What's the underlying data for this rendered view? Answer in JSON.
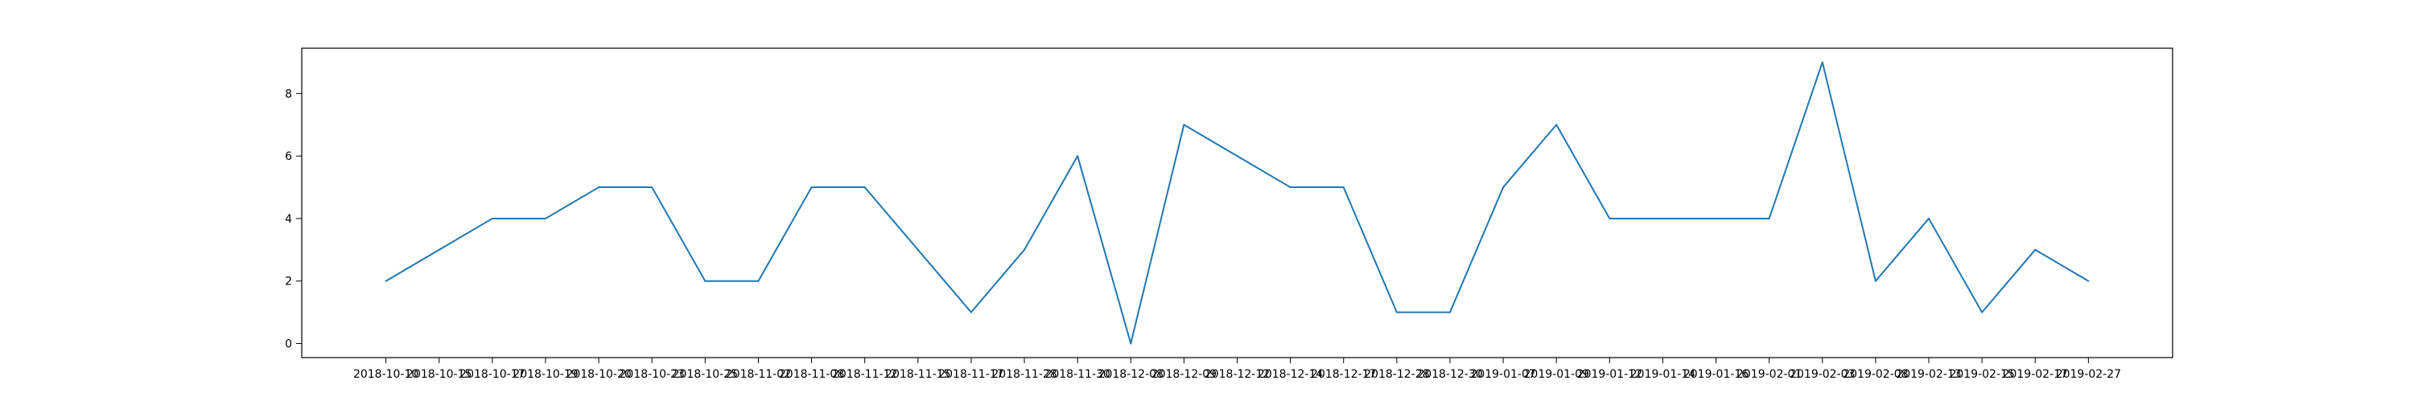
{
  "chart_data": {
    "type": "line",
    "title": "",
    "xlabel": "",
    "ylabel": "",
    "ylim": [
      -0.45,
      9.45
    ],
    "yticks": [
      0,
      2,
      4,
      6,
      8
    ],
    "grid": false,
    "line_color": "#1f77b4",
    "x": [
      "2018-10-10",
      "2018-10-15",
      "2018-10-17",
      "2018-10-19",
      "2018-10-20",
      "2018-10-23",
      "2018-10-25",
      "2018-11-02",
      "2018-11-08",
      "2018-11-12",
      "2018-11-15",
      "2018-11-17",
      "2018-11-28",
      "2018-11-30",
      "2018-12-08",
      "2018-12-09",
      "2018-12-12",
      "2018-12-14",
      "2018-12-17",
      "2018-12-28",
      "2018-12-30",
      "2019-01-07",
      "2019-01-09",
      "2019-01-12",
      "2019-01-14",
      "2019-01-16",
      "2019-02-01",
      "2019-02-03",
      "2019-02-08",
      "2019-02-13",
      "2019-02-15",
      "2019-02-17",
      "2019-02-27"
    ],
    "series": [
      {
        "values": [
          2,
          3,
          4,
          4,
          5,
          5,
          2,
          2,
          5,
          5,
          3,
          1,
          3,
          6,
          0,
          7,
          6,
          5,
          5,
          1,
          1,
          5,
          7,
          4,
          4,
          4,
          4,
          9,
          2,
          4,
          1,
          3,
          2
        ]
      }
    ]
  }
}
